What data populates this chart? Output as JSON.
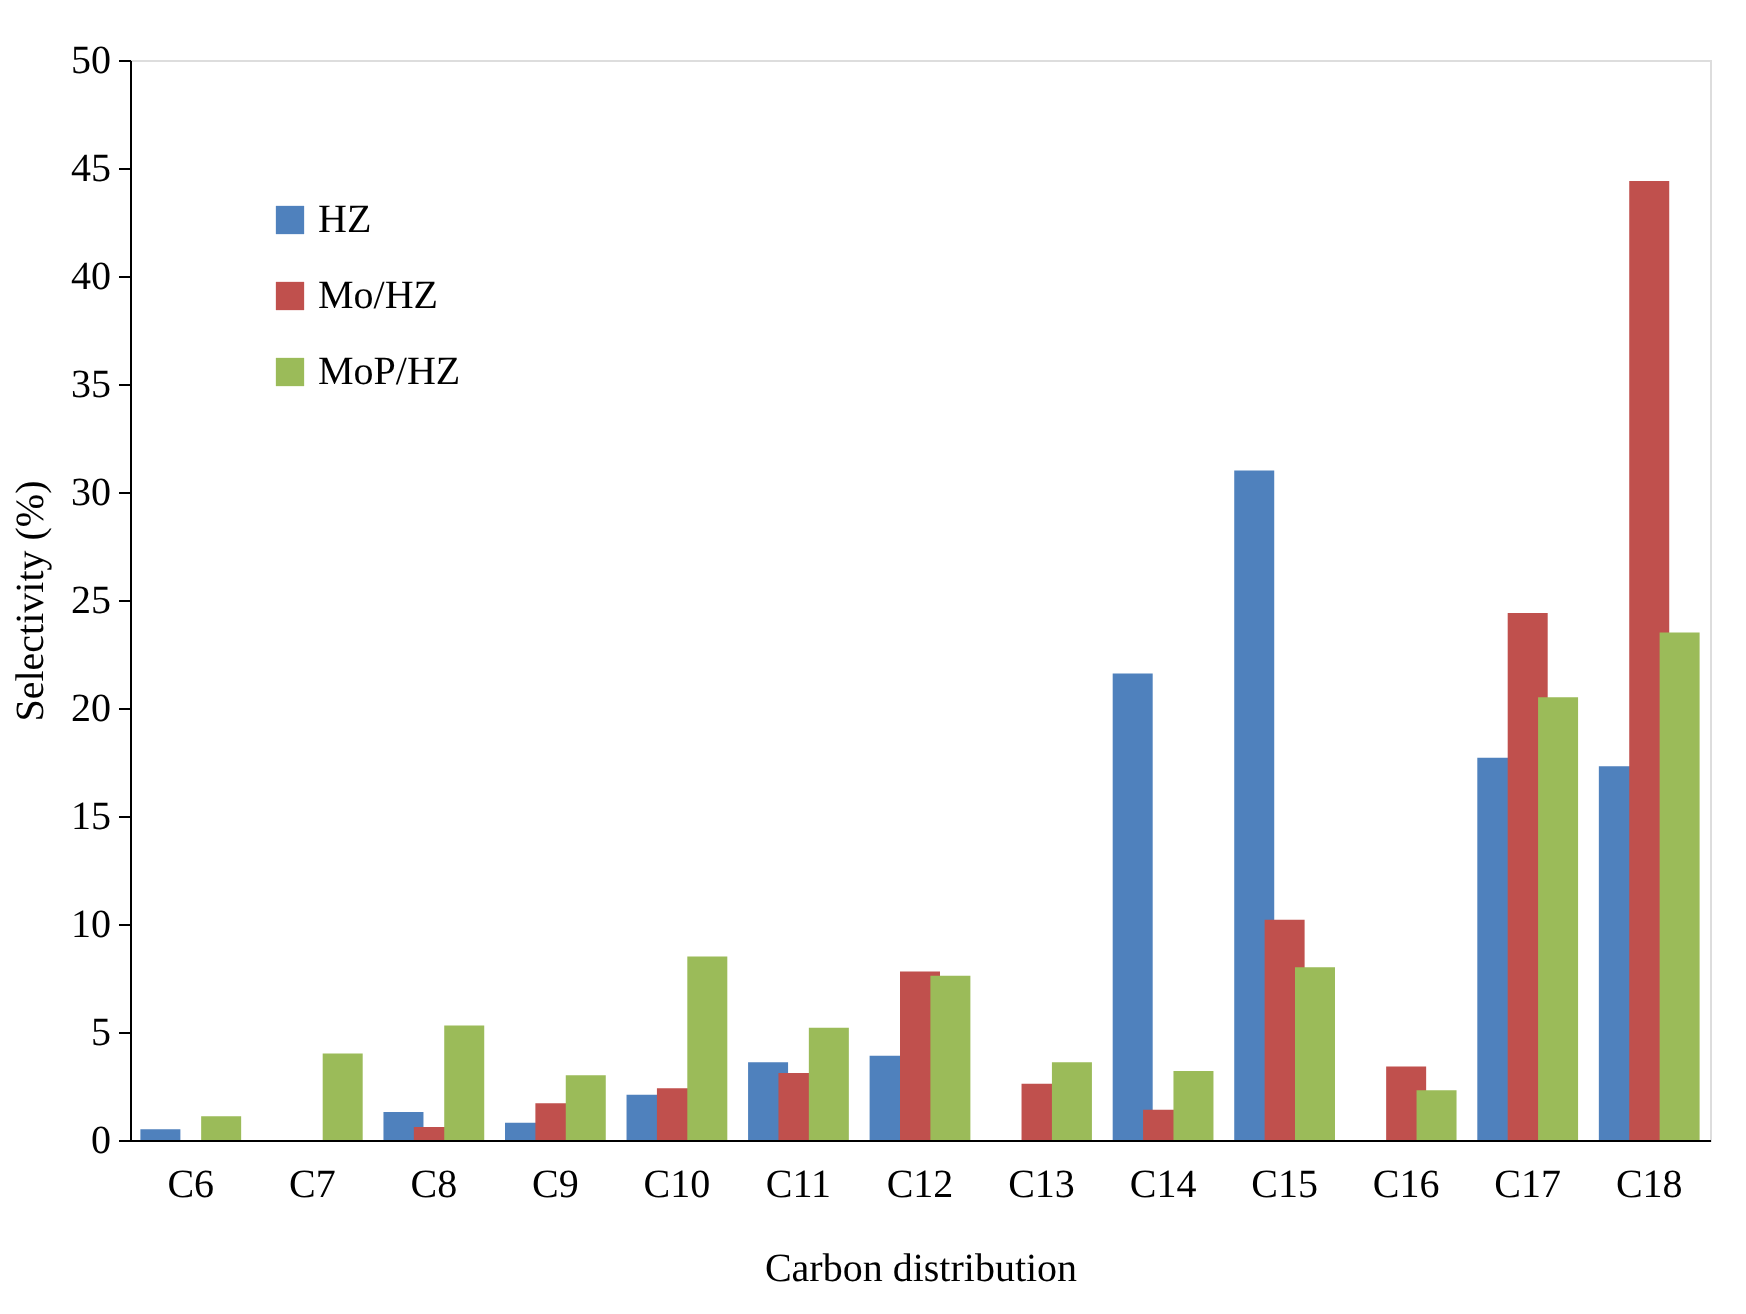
{
  "chart_data": {
    "type": "bar",
    "xlabel": "Carbon distribution",
    "ylabel": "Selectivity (%)",
    "categories": [
      "C6",
      "C7",
      "C8",
      "C9",
      "C10",
      "C11",
      "C12",
      "C13",
      "C14",
      "C15",
      "C16",
      "C17",
      "C18"
    ],
    "series": [
      {
        "name": "HZ",
        "color": "#4f81bd",
        "values": [
          0.5,
          null,
          1.3,
          0.8,
          2.1,
          3.6,
          3.9,
          null,
          21.6,
          31.0,
          null,
          17.7,
          17.3
        ]
      },
      {
        "name": "Mo/HZ",
        "color": "#c0504d",
        "values": [
          null,
          null,
          0.6,
          1.7,
          2.4,
          3.1,
          7.8,
          2.6,
          1.4,
          10.2,
          3.4,
          24.4,
          44.4
        ]
      },
      {
        "name": "MoP/HZ",
        "color": "#9bbb59",
        "values": [
          1.1,
          4.0,
          5.3,
          3.0,
          8.5,
          5.2,
          7.6,
          3.6,
          3.2,
          8.0,
          2.3,
          20.5,
          23.5
        ]
      }
    ],
    "ylim": [
      0,
      50
    ],
    "yticks": [
      0,
      5,
      10,
      15,
      20,
      25,
      30,
      35,
      40,
      45,
      50
    ],
    "grid": false,
    "legend": "top left"
  }
}
